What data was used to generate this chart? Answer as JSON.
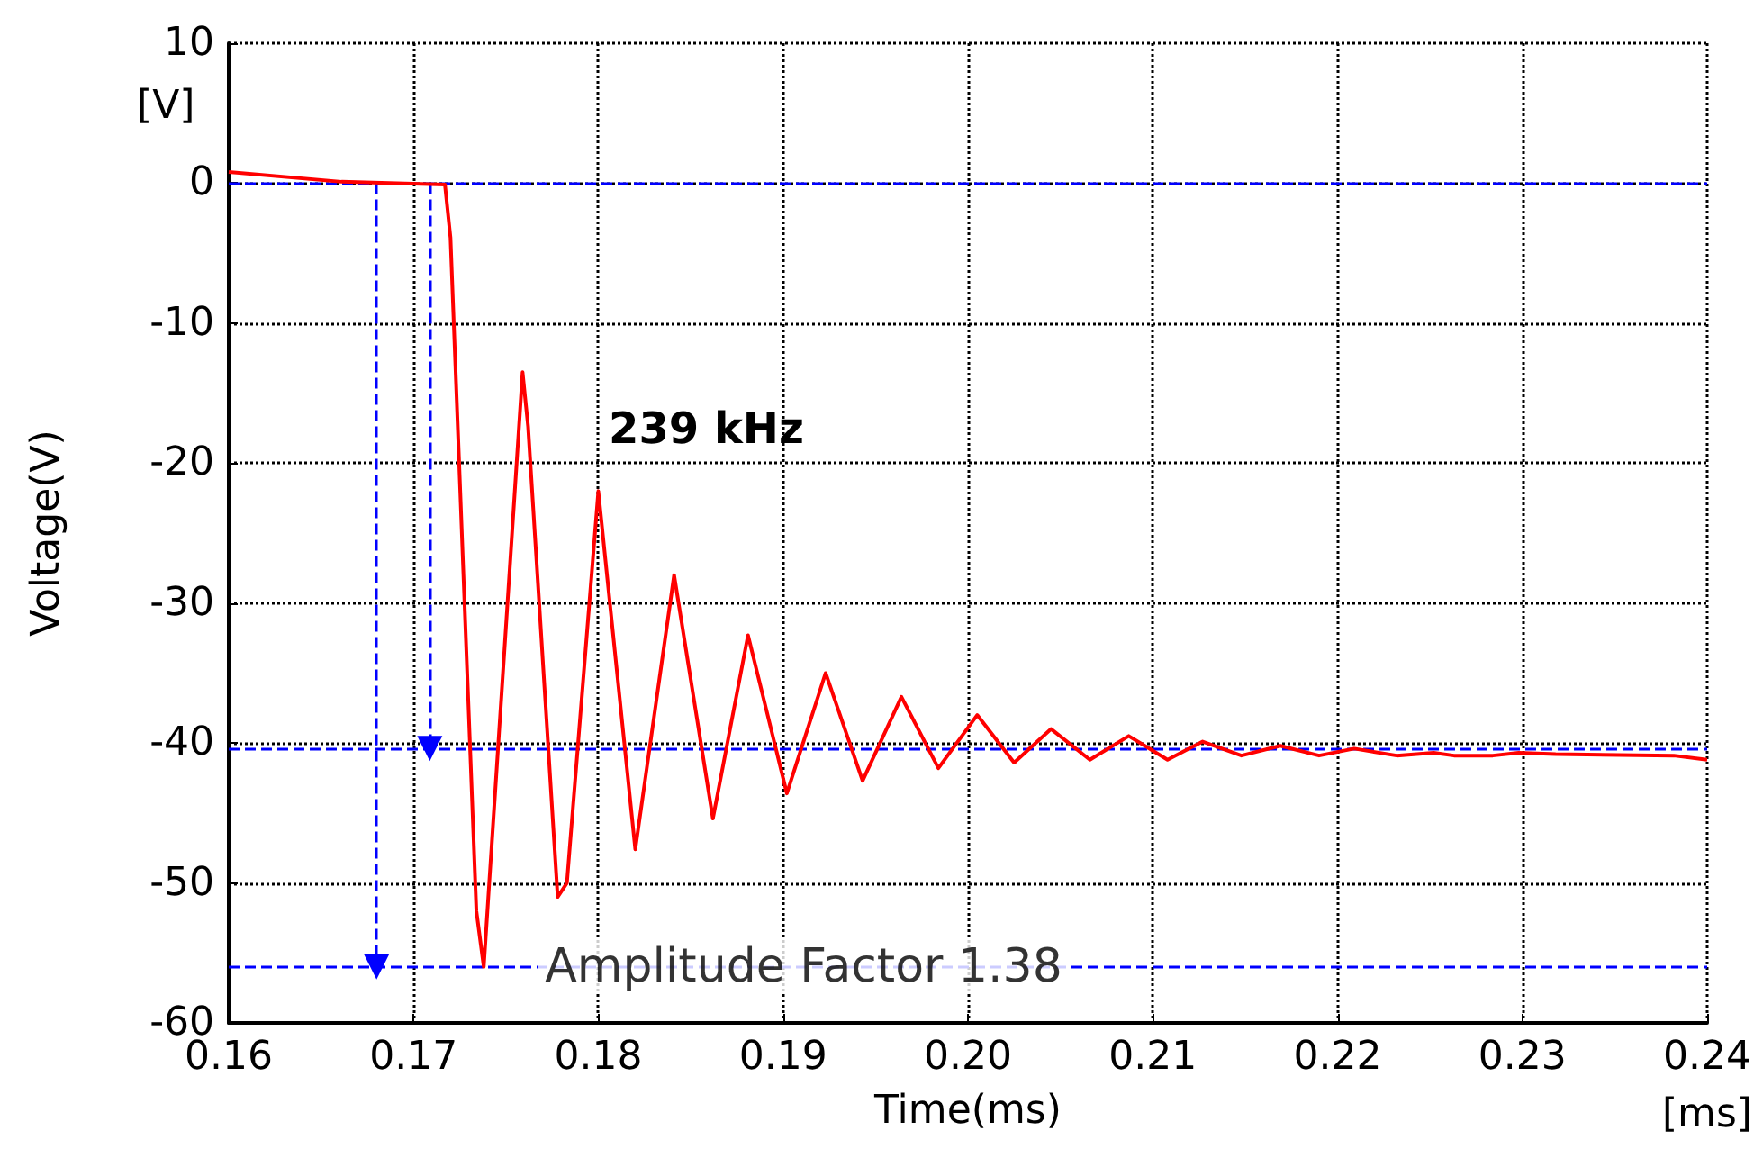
{
  "chart_data": {
    "type": "line",
    "xlabel": "Time(ms)",
    "ylabel": "Voltage(V)",
    "xlim": [
      0.16,
      0.24
    ],
    "xticks": [
      0.16,
      0.17,
      0.18,
      0.19,
      {
        "value": 0.2,
        "label": "0.20"
      },
      0.21,
      0.22,
      0.23,
      0.24
    ],
    "ylim": [
      -60,
      10
    ],
    "yticks": [
      -60,
      -50,
      -40,
      -30,
      -20,
      -10,
      0,
      10
    ],
    "grid": true,
    "marker": "none",
    "line_style": "solid",
    "x": [
      0.16,
      0.1661,
      0.1717,
      0.172,
      0.1734,
      0.1738,
      0.1759,
      0.1762,
      0.1778,
      0.1783,
      0.18,
      0.182,
      0.1841,
      0.1862,
      0.1881,
      0.1902,
      0.1923,
      0.1943,
      0.1964,
      0.1984,
      0.2005,
      0.2025,
      0.2045,
      0.2066,
      0.2087,
      0.2108,
      0.2127,
      0.2148,
      0.2169,
      0.219,
      0.2209,
      0.2232,
      0.2252,
      0.2263,
      0.2284,
      0.2298,
      0.2318,
      0.2382,
      0.24
    ],
    "series": [
      {
        "color": "#ff0000",
        "values": [
          0.8,
          0.1,
          -0.1,
          -3.9,
          -52,
          -56,
          -13.5,
          -17.4,
          -51,
          -50,
          -22,
          -47.6,
          -28,
          -45.4,
          -32.3,
          -43.6,
          -35,
          -42.7,
          -36.7,
          -41.8,
          -38,
          -41.4,
          -39,
          -41.2,
          -39.5,
          -41.2,
          -39.9,
          -40.9,
          -40.2,
          -40.9,
          -40.4,
          -40.9,
          -40.7,
          -40.9,
          -40.9,
          -40.7,
          -40.8,
          -40.9,
          -41.2
        ]
      }
    ],
    "ref_lines": [
      {
        "axis": "y",
        "value": 0,
        "color": "#0000ff",
        "line_style": "dashed"
      },
      {
        "axis": "y",
        "value": -40.4,
        "color": "#0000ff",
        "line_style": "dashed"
      },
      {
        "axis": "y",
        "value": -56,
        "color": "#0000ff",
        "line_style": "dashed"
      }
    ],
    "annotations": [
      "239 kHz",
      {
        "text": "Amplitude Factor 1.38",
        "x": 0.1738,
        "y": -56
      },
      "[V]",
      "[ms]"
    ]
  }
}
